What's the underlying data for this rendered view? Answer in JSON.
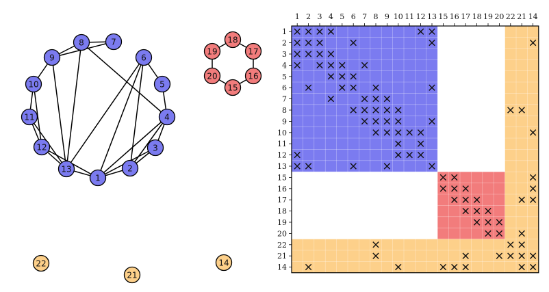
{
  "colors": {
    "community_1": "#7b7bf0",
    "community_2": "#f27c7c",
    "community_3": "#fdd08a",
    "edge": "#000000",
    "grid_line": "#ffffff",
    "frame": "#000000"
  },
  "graph": {
    "nodes": [
      {
        "label": "1",
        "group": "community_1"
      },
      {
        "label": "2",
        "group": "community_1"
      },
      {
        "label": "3",
        "group": "community_1"
      },
      {
        "label": "4",
        "group": "community_1"
      },
      {
        "label": "5",
        "group": "community_1"
      },
      {
        "label": "6",
        "group": "community_1"
      },
      {
        "label": "7",
        "group": "community_1"
      },
      {
        "label": "8",
        "group": "community_1"
      },
      {
        "label": "9",
        "group": "community_1"
      },
      {
        "label": "10",
        "group": "community_1"
      },
      {
        "label": "11",
        "group": "community_1"
      },
      {
        "label": "12",
        "group": "community_1"
      },
      {
        "label": "13",
        "group": "community_1"
      },
      {
        "label": "14",
        "group": "community_3"
      },
      {
        "label": "15",
        "group": "community_2"
      },
      {
        "label": "16",
        "group": "community_2"
      },
      {
        "label": "17",
        "group": "community_2"
      },
      {
        "label": "18",
        "group": "community_2"
      },
      {
        "label": "19",
        "group": "community_2"
      },
      {
        "label": "20",
        "group": "community_2"
      },
      {
        "label": "21",
        "group": "community_3"
      },
      {
        "label": "22",
        "group": "community_3"
      }
    ],
    "edges": [
      [
        "1",
        "2"
      ],
      [
        "1",
        "3"
      ],
      [
        "1",
        "13"
      ],
      [
        "1",
        "12"
      ],
      [
        "1",
        "6"
      ],
      [
        "1",
        "4"
      ],
      [
        "2",
        "3"
      ],
      [
        "2",
        "6"
      ],
      [
        "2",
        "4"
      ],
      [
        "3",
        "4"
      ],
      [
        "4",
        "5"
      ],
      [
        "4",
        "8"
      ],
      [
        "5",
        "6"
      ],
      [
        "6",
        "13"
      ],
      [
        "7",
        "8"
      ],
      [
        "7",
        "9"
      ],
      [
        "8",
        "9"
      ],
      [
        "8",
        "13"
      ],
      [
        "9",
        "10"
      ],
      [
        "9",
        "13"
      ],
      [
        "10",
        "11"
      ],
      [
        "10",
        "12"
      ],
      [
        "11",
        "12"
      ],
      [
        "11",
        "13"
      ],
      [
        "12",
        "13"
      ],
      [
        "15",
        "16"
      ],
      [
        "16",
        "17"
      ],
      [
        "17",
        "18"
      ],
      [
        "18",
        "19"
      ],
      [
        "19",
        "20"
      ],
      [
        "20",
        "15"
      ]
    ]
  },
  "matrix": {
    "column_labels": [
      "1",
      "2",
      "3",
      "4",
      "5",
      "6",
      "7",
      "8",
      "9",
      "10",
      "11",
      "12",
      "13",
      "15",
      "16",
      "17",
      "18",
      "19",
      "20",
      "22",
      "21",
      "14"
    ],
    "row_labels": [
      "1",
      "2",
      "3",
      "4",
      "5",
      "6",
      "7",
      "8",
      "9",
      "10",
      "11",
      "12",
      "13",
      "15",
      "16",
      "17",
      "18",
      "19",
      "20",
      "22",
      "21",
      "14"
    ],
    "blocks": [
      {
        "group": "community_1",
        "start": 0,
        "end": 12
      },
      {
        "group": "community_2",
        "start": 13,
        "end": 18
      },
      {
        "group": "community_3",
        "start": 19,
        "end": 21
      }
    ],
    "marks": [
      [
        0,
        0
      ],
      [
        0,
        1
      ],
      [
        0,
        2
      ],
      [
        0,
        3
      ],
      [
        0,
        11
      ],
      [
        0,
        12
      ],
      [
        1,
        0
      ],
      [
        1,
        1
      ],
      [
        1,
        2
      ],
      [
        1,
        5
      ],
      [
        1,
        12
      ],
      [
        1,
        21
      ],
      [
        2,
        0
      ],
      [
        2,
        1
      ],
      [
        2,
        2
      ],
      [
        2,
        3
      ],
      [
        3,
        0
      ],
      [
        3,
        2
      ],
      [
        3,
        3
      ],
      [
        3,
        4
      ],
      [
        3,
        6
      ],
      [
        4,
        3
      ],
      [
        4,
        4
      ],
      [
        4,
        5
      ],
      [
        5,
        1
      ],
      [
        5,
        4
      ],
      [
        5,
        5
      ],
      [
        5,
        7
      ],
      [
        5,
        12
      ],
      [
        6,
        3
      ],
      [
        6,
        6
      ],
      [
        6,
        7
      ],
      [
        6,
        8
      ],
      [
        7,
        5
      ],
      [
        7,
        6
      ],
      [
        7,
        7
      ],
      [
        7,
        8
      ],
      [
        7,
        9
      ],
      [
        7,
        19
      ],
      [
        7,
        20
      ],
      [
        8,
        6
      ],
      [
        8,
        7
      ],
      [
        8,
        8
      ],
      [
        8,
        9
      ],
      [
        8,
        12
      ],
      [
        9,
        7
      ],
      [
        9,
        8
      ],
      [
        9,
        9
      ],
      [
        9,
        10
      ],
      [
        9,
        11
      ],
      [
        9,
        21
      ],
      [
        10,
        9
      ],
      [
        10,
        11
      ],
      [
        11,
        0
      ],
      [
        11,
        9
      ],
      [
        11,
        10
      ],
      [
        11,
        11
      ],
      [
        12,
        0
      ],
      [
        12,
        1
      ],
      [
        12,
        5
      ],
      [
        12,
        8
      ],
      [
        12,
        12
      ],
      [
        13,
        13
      ],
      [
        13,
        14
      ],
      [
        13,
        21
      ],
      [
        14,
        13
      ],
      [
        14,
        14
      ],
      [
        14,
        15
      ],
      [
        14,
        21
      ],
      [
        15,
        14
      ],
      [
        15,
        15
      ],
      [
        15,
        16
      ],
      [
        15,
        20
      ],
      [
        15,
        21
      ],
      [
        16,
        15
      ],
      [
        16,
        16
      ],
      [
        16,
        17
      ],
      [
        17,
        16
      ],
      [
        17,
        17
      ],
      [
        17,
        18
      ],
      [
        18,
        17
      ],
      [
        18,
        18
      ],
      [
        18,
        20
      ],
      [
        19,
        7
      ],
      [
        19,
        19
      ],
      [
        19,
        20
      ],
      [
        20,
        7
      ],
      [
        20,
        15
      ],
      [
        20,
        18
      ],
      [
        20,
        19
      ],
      [
        20,
        20
      ],
      [
        20,
        21
      ],
      [
        21,
        1
      ],
      [
        21,
        9
      ],
      [
        21,
        13
      ],
      [
        21,
        14
      ],
      [
        21,
        15
      ],
      [
        21,
        20
      ],
      [
        21,
        21
      ]
    ]
  }
}
